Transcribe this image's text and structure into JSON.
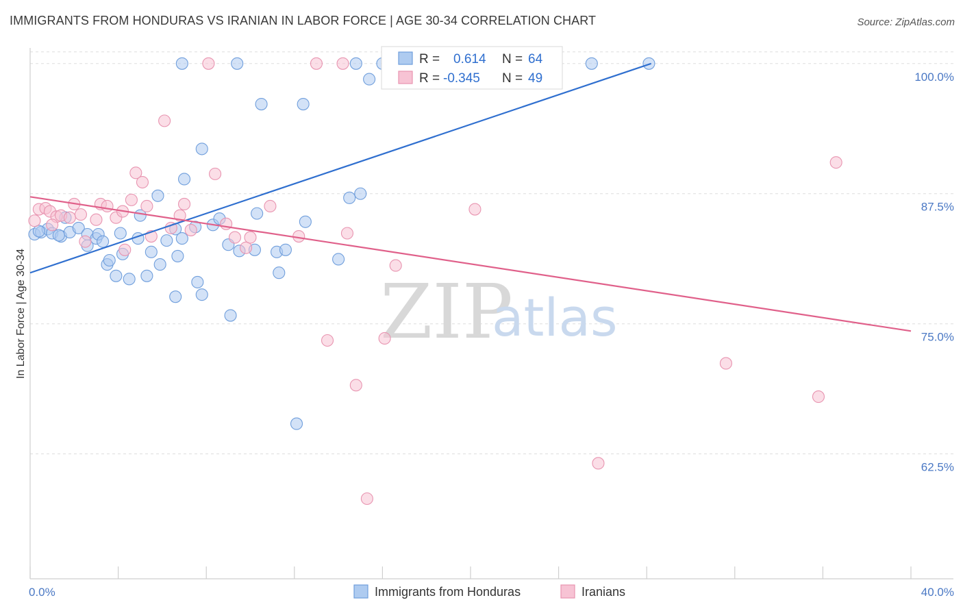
{
  "title": "IMMIGRANTS FROM HONDURAS VS IRANIAN IN LABOR FORCE | AGE 30-34 CORRELATION CHART",
  "source": "Source: ZipAtlas.com",
  "watermark": {
    "zip": "ZIP",
    "atlas": "atlas"
  },
  "legend_top": {
    "rows": [
      {
        "r_label": "R =",
        "r_value": "0.614",
        "n_label": "N =",
        "n_value": "64"
      },
      {
        "r_label": "R =",
        "r_value": "-0.345",
        "n_label": "N =",
        "n_value": "49"
      }
    ]
  },
  "colors": {
    "blue": "#2f6fcf",
    "blue_fill": "#aecbf0",
    "blue_stroke": "#6f9edc",
    "pink": "#e0608a",
    "pink_fill": "#f7c3d4",
    "pink_stroke": "#e894b0",
    "grid": "#dddddd",
    "axis_text": "#4a78c4"
  },
  "chart_data": {
    "type": "scatter",
    "title": "IMMIGRANTS FROM HONDURAS VS IRANIAN IN LABOR FORCE | AGE 30-34 CORRELATION CHART",
    "xlabel": "",
    "ylabel": "In Labor Force | Age 30-34",
    "xlim": [
      0,
      40
    ],
    "ylim": [
      50.5,
      101.5
    ],
    "x_ticks": [
      "0.0%",
      "40.0%"
    ],
    "y_ticks": [
      {
        "value": 62.5,
        "label": "62.5%"
      },
      {
        "value": 75.0,
        "label": "75.0%"
      },
      {
        "value": 87.5,
        "label": "87.5%"
      },
      {
        "value": 100.0,
        "label": "100.0%"
      }
    ],
    "grid": true,
    "legend": "bottom-center",
    "series": [
      {
        "name": "Immigrants from Honduras",
        "color": "#2f6fcf",
        "R": 0.614,
        "N": 64,
        "trend": [
          [
            0,
            79.9
          ],
          [
            28.2,
            100.0
          ]
        ],
        "points": [
          [
            0.2,
            83.6
          ],
          [
            0.5,
            83.8
          ],
          [
            0.8,
            84.1
          ],
          [
            1.0,
            83.7
          ],
          [
            1.4,
            83.4
          ],
          [
            1.6,
            85.2
          ],
          [
            1.8,
            83.8
          ],
          [
            2.2,
            84.2
          ],
          [
            2.6,
            83.6
          ],
          [
            2.6,
            82.5
          ],
          [
            3.0,
            83.2
          ],
          [
            3.1,
            83.6
          ],
          [
            3.5,
            80.7
          ],
          [
            3.6,
            81.1
          ],
          [
            3.9,
            79.6
          ],
          [
            4.1,
            83.7
          ],
          [
            4.2,
            81.7
          ],
          [
            4.5,
            79.3
          ],
          [
            4.9,
            83.2
          ],
          [
            5.0,
            85.4
          ],
          [
            5.3,
            79.6
          ],
          [
            5.5,
            81.9
          ],
          [
            5.8,
            87.3
          ],
          [
            5.9,
            80.7
          ],
          [
            6.2,
            83.0
          ],
          [
            6.6,
            84.1
          ],
          [
            6.6,
            77.6
          ],
          [
            6.7,
            81.5
          ],
          [
            6.9,
            83.2
          ],
          [
            7.0,
            88.9
          ],
          [
            7.5,
            84.3
          ],
          [
            7.6,
            79.0
          ],
          [
            7.8,
            91.8
          ],
          [
            7.8,
            77.8
          ],
          [
            8.3,
            84.5
          ],
          [
            8.6,
            85.1
          ],
          [
            9.0,
            82.6
          ],
          [
            9.1,
            75.8
          ],
          [
            9.5,
            82.0
          ],
          [
            9.4,
            100.0
          ],
          [
            10.2,
            82.1
          ],
          [
            10.3,
            85.6
          ],
          [
            10.5,
            96.1
          ],
          [
            11.2,
            81.9
          ],
          [
            11.3,
            79.9
          ],
          [
            11.6,
            82.1
          ],
          [
            12.1,
            65.4
          ],
          [
            12.5,
            84.8
          ],
          [
            12.4,
            96.1
          ],
          [
            14.0,
            81.2
          ],
          [
            14.5,
            87.1
          ],
          [
            14.8,
            100.0
          ],
          [
            15.0,
            87.5
          ],
          [
            15.4,
            98.5
          ],
          [
            16.0,
            100.0
          ],
          [
            17.5,
            100.0
          ],
          [
            23.8,
            100.0
          ],
          [
            25.5,
            100.0
          ],
          [
            28.1,
            100.0
          ],
          [
            0.4,
            83.9
          ],
          [
            1.3,
            83.5
          ],
          [
            6.9,
            100.0
          ],
          [
            3.3,
            82.9
          ],
          [
            18.6,
            100.0
          ]
        ]
      },
      {
        "name": "Iranians",
        "color": "#e0608a",
        "R": -0.345,
        "N": 49,
        "trend": [
          [
            0,
            87.2
          ],
          [
            40,
            74.3
          ]
        ],
        "points": [
          [
            0.2,
            84.9
          ],
          [
            0.4,
            86.0
          ],
          [
            0.7,
            86.1
          ],
          [
            0.9,
            85.8
          ],
          [
            1.2,
            85.3
          ],
          [
            1.4,
            85.4
          ],
          [
            1.8,
            85.2
          ],
          [
            2.0,
            86.5
          ],
          [
            2.3,
            85.5
          ],
          [
            2.5,
            82.9
          ],
          [
            3.0,
            85.0
          ],
          [
            3.2,
            86.5
          ],
          [
            3.5,
            86.3
          ],
          [
            3.9,
            85.2
          ],
          [
            4.2,
            85.8
          ],
          [
            4.3,
            82.1
          ],
          [
            4.6,
            86.9
          ],
          [
            4.8,
            89.5
          ],
          [
            5.1,
            88.6
          ],
          [
            5.3,
            86.3
          ],
          [
            5.5,
            83.4
          ],
          [
            6.1,
            94.5
          ],
          [
            6.4,
            84.2
          ],
          [
            6.8,
            85.4
          ],
          [
            7.0,
            86.5
          ],
          [
            7.3,
            84.0
          ],
          [
            8.1,
            100.0
          ],
          [
            8.4,
            89.4
          ],
          [
            8.9,
            84.6
          ],
          [
            9.3,
            83.3
          ],
          [
            9.8,
            82.3
          ],
          [
            10.0,
            83.3
          ],
          [
            10.9,
            86.3
          ],
          [
            12.2,
            83.4
          ],
          [
            13.0,
            100.0
          ],
          [
            13.5,
            73.4
          ],
          [
            14.2,
            100.0
          ],
          [
            14.4,
            83.7
          ],
          [
            14.8,
            69.1
          ],
          [
            15.3,
            58.2
          ],
          [
            16.1,
            73.6
          ],
          [
            16.6,
            80.6
          ],
          [
            17.7,
            100.0
          ],
          [
            20.2,
            86.0
          ],
          [
            25.8,
            61.6
          ],
          [
            31.6,
            71.2
          ],
          [
            35.8,
            68.0
          ],
          [
            36.6,
            90.5
          ],
          [
            1.0,
            84.5
          ]
        ]
      }
    ]
  },
  "legend_bottom": [
    {
      "label": "Immigrants from Honduras"
    },
    {
      "label": "Iranians"
    }
  ]
}
